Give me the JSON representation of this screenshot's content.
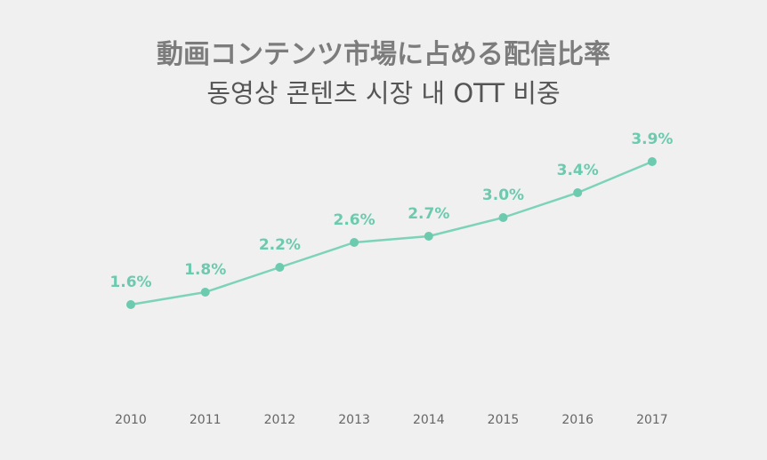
{
  "title": "動画コンテンツ市場に占める配信比率",
  "subtitle": "동영상 콘텐츠 시장 내 OTT 비중",
  "colors": {
    "background": "#eff0ef",
    "line": "#7dd3b9",
    "marker": "#6ccaaf",
    "label": "#6ccaaf"
  },
  "chart_data": {
    "type": "line",
    "title": "動画コンテンツ市場に占める配信比率",
    "subtitle": "동영상 콘텐츠 시장 내 OTT 비중",
    "categories": [
      "2010",
      "2011",
      "2012",
      "2013",
      "2014",
      "2015",
      "2016",
      "2017"
    ],
    "values": [
      1.6,
      1.8,
      2.2,
      2.6,
      2.7,
      3.0,
      3.4,
      3.9
    ],
    "data_labels": [
      "1.6%",
      "1.8%",
      "2.2%",
      "2.6%",
      "2.7%",
      "3.0%",
      "3.4%",
      "3.9%"
    ],
    "unit": "%",
    "xlabel": "",
    "ylabel": "",
    "grid": false,
    "legend": "none"
  }
}
